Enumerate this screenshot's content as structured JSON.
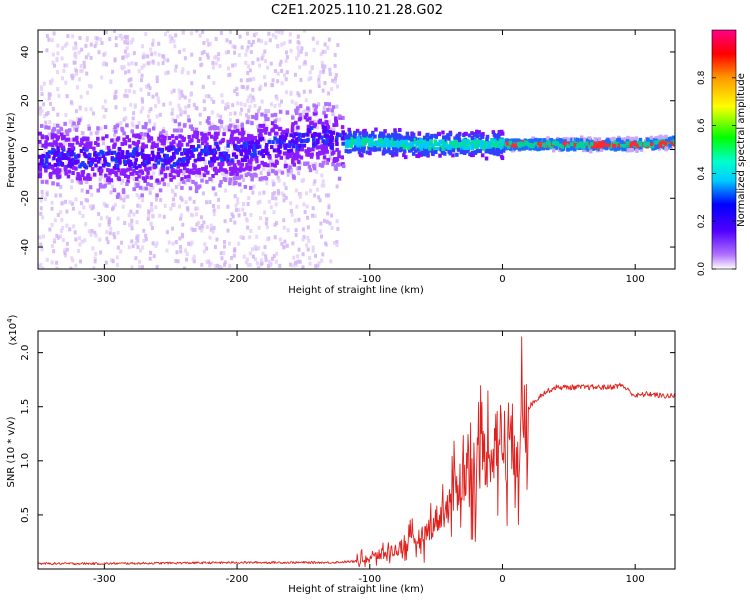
{
  "figure_title": "C2E1.2025.110.21.28.G02",
  "chart_data": [
    {
      "type": "heatmap",
      "xlabel": "Height of straight line (km)",
      "ylabel": "Frequency (Hz)",
      "xlim": [
        -350,
        130
      ],
      "ylim": [
        -49,
        49
      ],
      "xticks": [
        -300,
        -200,
        -100,
        0,
        100
      ],
      "yticks": [
        -40,
        -20,
        0,
        20,
        40
      ],
      "colorbar": {
        "label": "Normalized spectral amplitude",
        "range": [
          0,
          1
        ],
        "ticks": [
          "0.0",
          "0.2",
          "0.4",
          "0.6",
          "0.8"
        ],
        "colors": [
          "#ffffff",
          "#8800ff",
          "#0000ff",
          "#00ffff",
          "#00ff00",
          "#ffff00",
          "#ff0000",
          "#ff0088"
        ]
      },
      "ridge": {
        "x": [
          -350,
          -300,
          -250,
          -200,
          -160,
          -140,
          -120,
          -100,
          -60,
          -30,
          0,
          50,
          100,
          130
        ],
        "y": [
          -3,
          -4,
          -3,
          -1,
          3,
          6,
          3,
          3,
          2,
          2,
          2,
          2,
          2,
          3
        ]
      },
      "grid": false
    },
    {
      "type": "line",
      "xlabel": "Height of straight line (km)",
      "ylabel": "SNR (10 * v/v)",
      "y_multiplier": "(x10^4)",
      "xlim": [
        -350,
        130
      ],
      "ylim": [
        0,
        2.2
      ],
      "xticks": [
        -300,
        -200,
        -100,
        0,
        100
      ],
      "yticks": [
        "0.5",
        "1.0",
        "1.5",
        "2.0"
      ],
      "series": [
        {
          "color": "#e0201c",
          "x": [
            -350,
            -300,
            -200,
            -130,
            -110,
            -100,
            -80,
            -60,
            -50,
            -40,
            -30,
            -20,
            -10,
            -5,
            0,
            5,
            10,
            15,
            20,
            30,
            40,
            60,
            80,
            90,
            95,
            100,
            110,
            120,
            130
          ],
          "y": [
            0.05,
            0.05,
            0.06,
            0.06,
            0.07,
            0.1,
            0.18,
            0.3,
            0.45,
            0.6,
            0.85,
            1.0,
            1.05,
            1.25,
            1.2,
            1.25,
            1.15,
            1.25,
            1.5,
            1.62,
            1.68,
            1.68,
            1.68,
            1.7,
            1.65,
            1.6,
            1.62,
            1.6,
            1.6
          ]
        }
      ],
      "grid": false
    }
  ]
}
